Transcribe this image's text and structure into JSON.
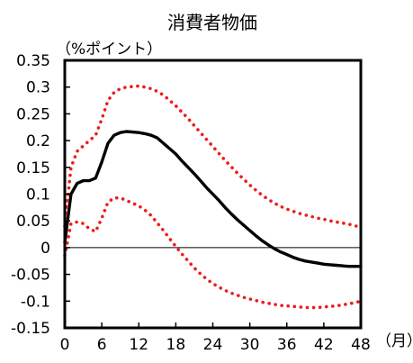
{
  "chart_data": {
    "type": "line",
    "title": "消費者物価",
    "ylabel": "（%ポイント）",
    "xlabel": "（月）",
    "ylim": [
      -0.15,
      0.35
    ],
    "xlim": [
      0,
      48
    ],
    "yticks": [
      "0.35",
      "0.3",
      "0.25",
      "0.2",
      "0.15",
      "0.1",
      "0.05",
      "0",
      "-0.05",
      "-0.1",
      "-0.15"
    ],
    "ytick_values": [
      0.35,
      0.3,
      0.25,
      0.2,
      0.15,
      0.1,
      0.05,
      0,
      -0.05,
      -0.1,
      -0.15
    ],
    "xticks": [
      "0",
      "6",
      "12",
      "18",
      "24",
      "30",
      "36",
      "42",
      "48"
    ],
    "xtick_values": [
      0,
      6,
      12,
      18,
      24,
      30,
      36,
      42,
      48
    ],
    "grid": false,
    "zero_line": true,
    "series": [
      {
        "role": "response",
        "style": "solid",
        "color": "#000000",
        "x": [
          0,
          1,
          2,
          3,
          4,
          5,
          6,
          7,
          8,
          9,
          10,
          11,
          12,
          13,
          14,
          15,
          16,
          17,
          18,
          19,
          20,
          21,
          22,
          23,
          24,
          25,
          26,
          27,
          28,
          29,
          30,
          31,
          32,
          33,
          34,
          35,
          36,
          37,
          38,
          39,
          40,
          41,
          42,
          43,
          44,
          45,
          46,
          47,
          48
        ],
        "y": [
          0.01,
          0.1,
          0.12,
          0.125,
          0.125,
          0.13,
          0.16,
          0.195,
          0.21,
          0.215,
          0.217,
          0.216,
          0.215,
          0.213,
          0.21,
          0.205,
          0.195,
          0.185,
          0.175,
          0.162,
          0.15,
          0.138,
          0.125,
          0.112,
          0.1,
          0.088,
          0.075,
          0.063,
          0.052,
          0.042,
          0.032,
          0.022,
          0.013,
          0.005,
          -0.002,
          -0.008,
          -0.013,
          -0.018,
          -0.022,
          -0.025,
          -0.027,
          -0.029,
          -0.031,
          -0.032,
          -0.033,
          -0.034,
          -0.035,
          -0.035,
          -0.035
        ]
      },
      {
        "role": "upper-band",
        "style": "dotted",
        "color": "#ee1c1c",
        "x": [
          0,
          1,
          2,
          3,
          4,
          5,
          6,
          7,
          8,
          9,
          10,
          11,
          12,
          13,
          14,
          15,
          16,
          17,
          18,
          19,
          20,
          21,
          22,
          23,
          24,
          25,
          26,
          27,
          28,
          29,
          30,
          31,
          32,
          33,
          34,
          35,
          36,
          37,
          38,
          39,
          40,
          41,
          42,
          43,
          44,
          45,
          46,
          47,
          48
        ],
        "y": [
          0.04,
          0.15,
          0.18,
          0.19,
          0.2,
          0.21,
          0.24,
          0.275,
          0.29,
          0.297,
          0.3,
          0.301,
          0.302,
          0.3,
          0.297,
          0.292,
          0.285,
          0.275,
          0.265,
          0.253,
          0.241,
          0.228,
          0.215,
          0.202,
          0.189,
          0.176,
          0.163,
          0.151,
          0.139,
          0.128,
          0.117,
          0.107,
          0.098,
          0.09,
          0.083,
          0.077,
          0.072,
          0.068,
          0.064,
          0.061,
          0.058,
          0.055,
          0.053,
          0.05,
          0.048,
          0.046,
          0.044,
          0.041,
          0.038
        ]
      },
      {
        "role": "lower-band",
        "style": "dotted",
        "color": "#ee1c1c",
        "x": [
          0,
          1,
          2,
          3,
          4,
          5,
          6,
          7,
          8,
          9,
          10,
          11,
          12,
          13,
          14,
          15,
          16,
          17,
          18,
          19,
          20,
          21,
          22,
          23,
          24,
          25,
          26,
          27,
          28,
          29,
          30,
          31,
          32,
          33,
          34,
          35,
          36,
          37,
          38,
          39,
          40,
          41,
          42,
          43,
          44,
          45,
          46,
          47,
          48
        ],
        "y": [
          -0.015,
          0.045,
          0.048,
          0.045,
          0.035,
          0.03,
          0.055,
          0.085,
          0.093,
          0.093,
          0.088,
          0.083,
          0.078,
          0.07,
          0.06,
          0.046,
          0.032,
          0.017,
          0.002,
          -0.012,
          -0.025,
          -0.038,
          -0.049,
          -0.059,
          -0.067,
          -0.074,
          -0.08,
          -0.085,
          -0.089,
          -0.093,
          -0.096,
          -0.099,
          -0.102,
          -0.104,
          -0.106,
          -0.108,
          -0.109,
          -0.11,
          -0.111,
          -0.112,
          -0.112,
          -0.112,
          -0.111,
          -0.11,
          -0.109,
          -0.107,
          -0.105,
          -0.103,
          -0.1
        ]
      }
    ]
  }
}
